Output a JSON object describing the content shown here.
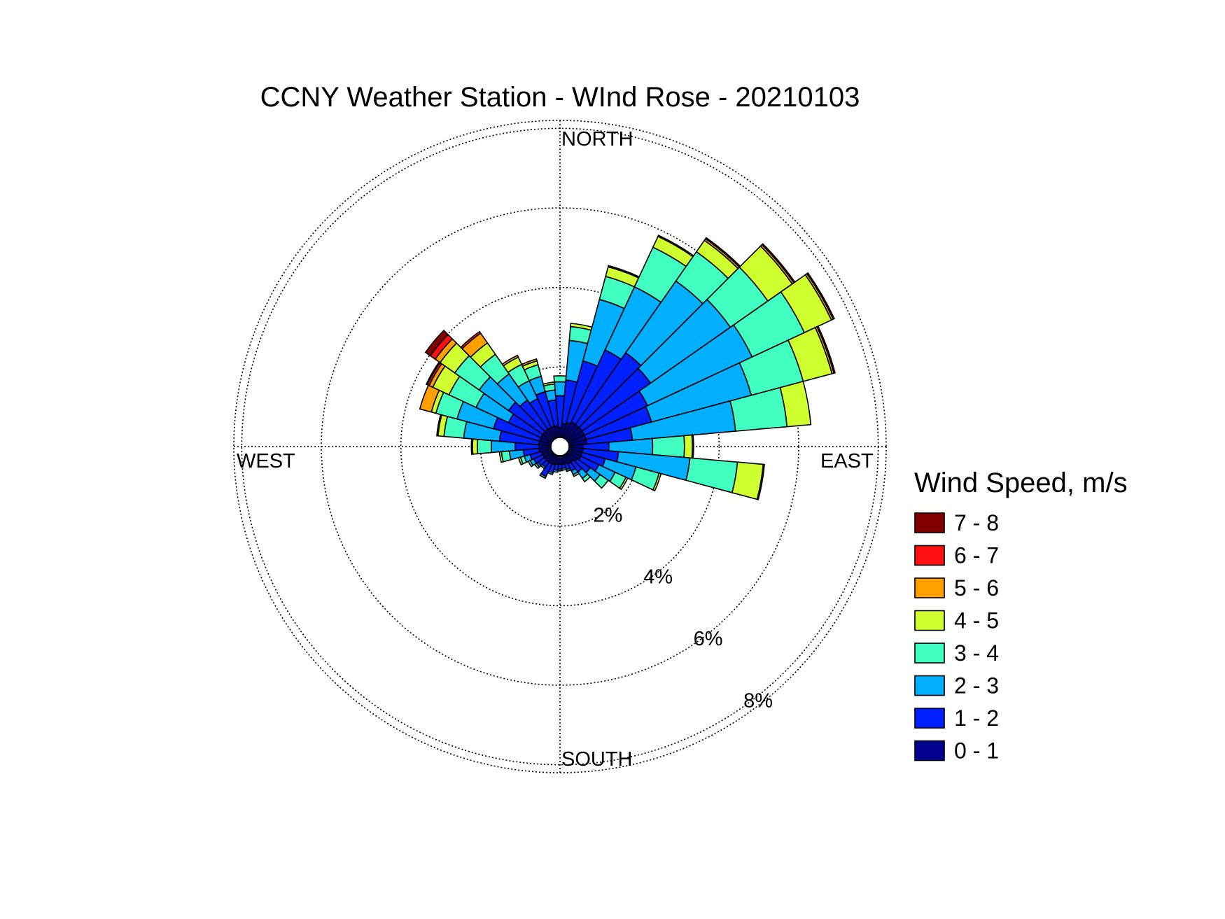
{
  "chart_data": {
    "type": "windrose",
    "title": "CCNY Weather Station - WInd Rose - 20210103",
    "direction_labels": {
      "north": "NORTH",
      "east": "EAST",
      "south": "SOUTH",
      "west": "WEST"
    },
    "rings": [
      2,
      4,
      6,
      8
    ],
    "ring_labels": [
      "2%",
      "4%",
      "6%",
      "8%"
    ],
    "rmax": 8.2,
    "legend_title": "Wind Speed, m/s",
    "bins": [
      {
        "label": "0 - 1",
        "color": "#00008f"
      },
      {
        "label": "1 - 2",
        "color": "#0020ff"
      },
      {
        "label": "2 - 3",
        "color": "#00b0ff"
      },
      {
        "label": "3 - 4",
        "color": "#40ffc0"
      },
      {
        "label": "4 - 5",
        "color": "#d0ff30"
      },
      {
        "label": "5 - 6",
        "color": "#ffa000"
      },
      {
        "label": "6 - 7",
        "color": "#ff1010"
      },
      {
        "label": "7 - 8",
        "color": "#800000"
      }
    ],
    "sector_width_deg": 10,
    "sectors": [
      {
        "dir": 0,
        "values": [
          0.25,
          0.8,
          0.35,
          0.15,
          0,
          0,
          0,
          0
        ]
      },
      {
        "dir": 10,
        "values": [
          0.35,
          1.1,
          1.0,
          0.35,
          0.08,
          0,
          0,
          0
        ]
      },
      {
        "dir": 20,
        "values": [
          0.4,
          1.6,
          1.6,
          0.6,
          0.25,
          0.03,
          0,
          0
        ]
      },
      {
        "dir": 30,
        "values": [
          0.45,
          2.0,
          1.75,
          1.1,
          0.3,
          0.03,
          0,
          0
        ]
      },
      {
        "dir": 40,
        "values": [
          0.45,
          2.2,
          2.2,
          0.9,
          0.35,
          0.05,
          0.03,
          0
        ]
      },
      {
        "dir": 50,
        "values": [
          0.45,
          2.1,
          2.45,
          1.15,
          0.75,
          0.05,
          0.03,
          0
        ]
      },
      {
        "dir": 60,
        "values": [
          0.45,
          1.75,
          2.9,
          1.45,
          0.75,
          0.05,
          0.03,
          0
        ]
      },
      {
        "dir": 70,
        "values": [
          0.45,
          1.7,
          2.6,
          1.35,
          0.75,
          0.05,
          0.03,
          0
        ]
      },
      {
        "dir": 80,
        "values": [
          0.45,
          1.15,
          2.6,
          1.3,
          0.6,
          0,
          0,
          0
        ]
      },
      {
        "dir": 90,
        "values": [
          0.35,
          0.65,
          1.1,
          0.8,
          0.2,
          0.03,
          0,
          0
        ]
      },
      {
        "dir": 100,
        "values": [
          0.35,
          0.9,
          1.8,
          1.2,
          0.65,
          0.03,
          0,
          0
        ]
      },
      {
        "dir": 110,
        "values": [
          0.35,
          0.6,
          0.8,
          0.6,
          0.05,
          0,
          0,
          0
        ]
      },
      {
        "dir": 120,
        "values": [
          0.35,
          0.5,
          0.45,
          0.3,
          0.05,
          0,
          0,
          0
        ]
      },
      {
        "dir": 130,
        "values": [
          0.3,
          0.4,
          0.3,
          0.25,
          0,
          0,
          0,
          0
        ]
      },
      {
        "dir": 140,
        "values": [
          0.25,
          0.3,
          0.2,
          0.1,
          0,
          0,
          0,
          0
        ]
      },
      {
        "dir": 150,
        "values": [
          0.25,
          0.2,
          0.1,
          0.05,
          0,
          0,
          0,
          0
        ]
      },
      {
        "dir": 160,
        "values": [
          0.22,
          0.15,
          0.05,
          0,
          0,
          0,
          0,
          0
        ]
      },
      {
        "dir": 170,
        "values": [
          0.22,
          0.1,
          0.05,
          0,
          0,
          0,
          0,
          0
        ]
      },
      {
        "dir": 180,
        "values": [
          0.22,
          0.12,
          0.04,
          0,
          0,
          0,
          0,
          0
        ]
      },
      {
        "dir": 190,
        "values": [
          0.22,
          0.15,
          0.05,
          0,
          0,
          0,
          0,
          0
        ]
      },
      {
        "dir": 200,
        "values": [
          0.25,
          0.2,
          0.05,
          0,
          0,
          0,
          0,
          0
        ]
      },
      {
        "dir": 210,
        "values": [
          0.25,
          0.35,
          0.05,
          0,
          0,
          0,
          0,
          0
        ]
      },
      {
        "dir": 220,
        "values": [
          0.25,
          0.15,
          0.05,
          0,
          0,
          0,
          0,
          0
        ]
      },
      {
        "dir": 230,
        "values": [
          0.25,
          0.2,
          0.05,
          0.05,
          0,
          0,
          0,
          0
        ]
      },
      {
        "dir": 240,
        "values": [
          0.25,
          0.25,
          0.1,
          0.05,
          0,
          0,
          0,
          0
        ]
      },
      {
        "dir": 250,
        "values": [
          0.25,
          0.3,
          0.15,
          0.1,
          0.05,
          0,
          0,
          0
        ]
      },
      {
        "dir": 260,
        "values": [
          0.3,
          0.4,
          0.35,
          0.2,
          0.05,
          0,
          0,
          0
        ]
      },
      {
        "dir": 270,
        "values": [
          0.3,
          0.6,
          0.6,
          0.35,
          0.12,
          0.03,
          0,
          0
        ]
      },
      {
        "dir": 280,
        "values": [
          0.3,
          1.0,
          0.9,
          0.5,
          0.15,
          0.03,
          0,
          0
        ]
      },
      {
        "dir": 290,
        "values": [
          0.3,
          1.2,
          0.95,
          0.55,
          0.12,
          0.3,
          0,
          0
        ]
      },
      {
        "dir": 300,
        "values": [
          0.3,
          0.9,
          0.9,
          0.75,
          0.45,
          0.1,
          0.05,
          0.03
        ]
      },
      {
        "dir": 310,
        "values": [
          0.3,
          1.05,
          0.9,
          0.75,
          0.45,
          0.15,
          0.15,
          0.15
        ]
      },
      {
        "dir": 320,
        "values": [
          0.3,
          0.9,
          0.8,
          0.6,
          0.35,
          0.3,
          0.05,
          0
        ]
      },
      {
        "dir": 330,
        "values": [
          0.3,
          0.8,
          0.5,
          0.45,
          0.2,
          0.05,
          0,
          0
        ]
      },
      {
        "dir": 340,
        "values": [
          0.3,
          0.9,
          0.4,
          0.3,
          0.1,
          0.05,
          0,
          0
        ]
      },
      {
        "dir": 350,
        "values": [
          0.3,
          0.65,
          0.25,
          0.15,
          0.05,
          0,
          0,
          0
        ]
      }
    ]
  }
}
